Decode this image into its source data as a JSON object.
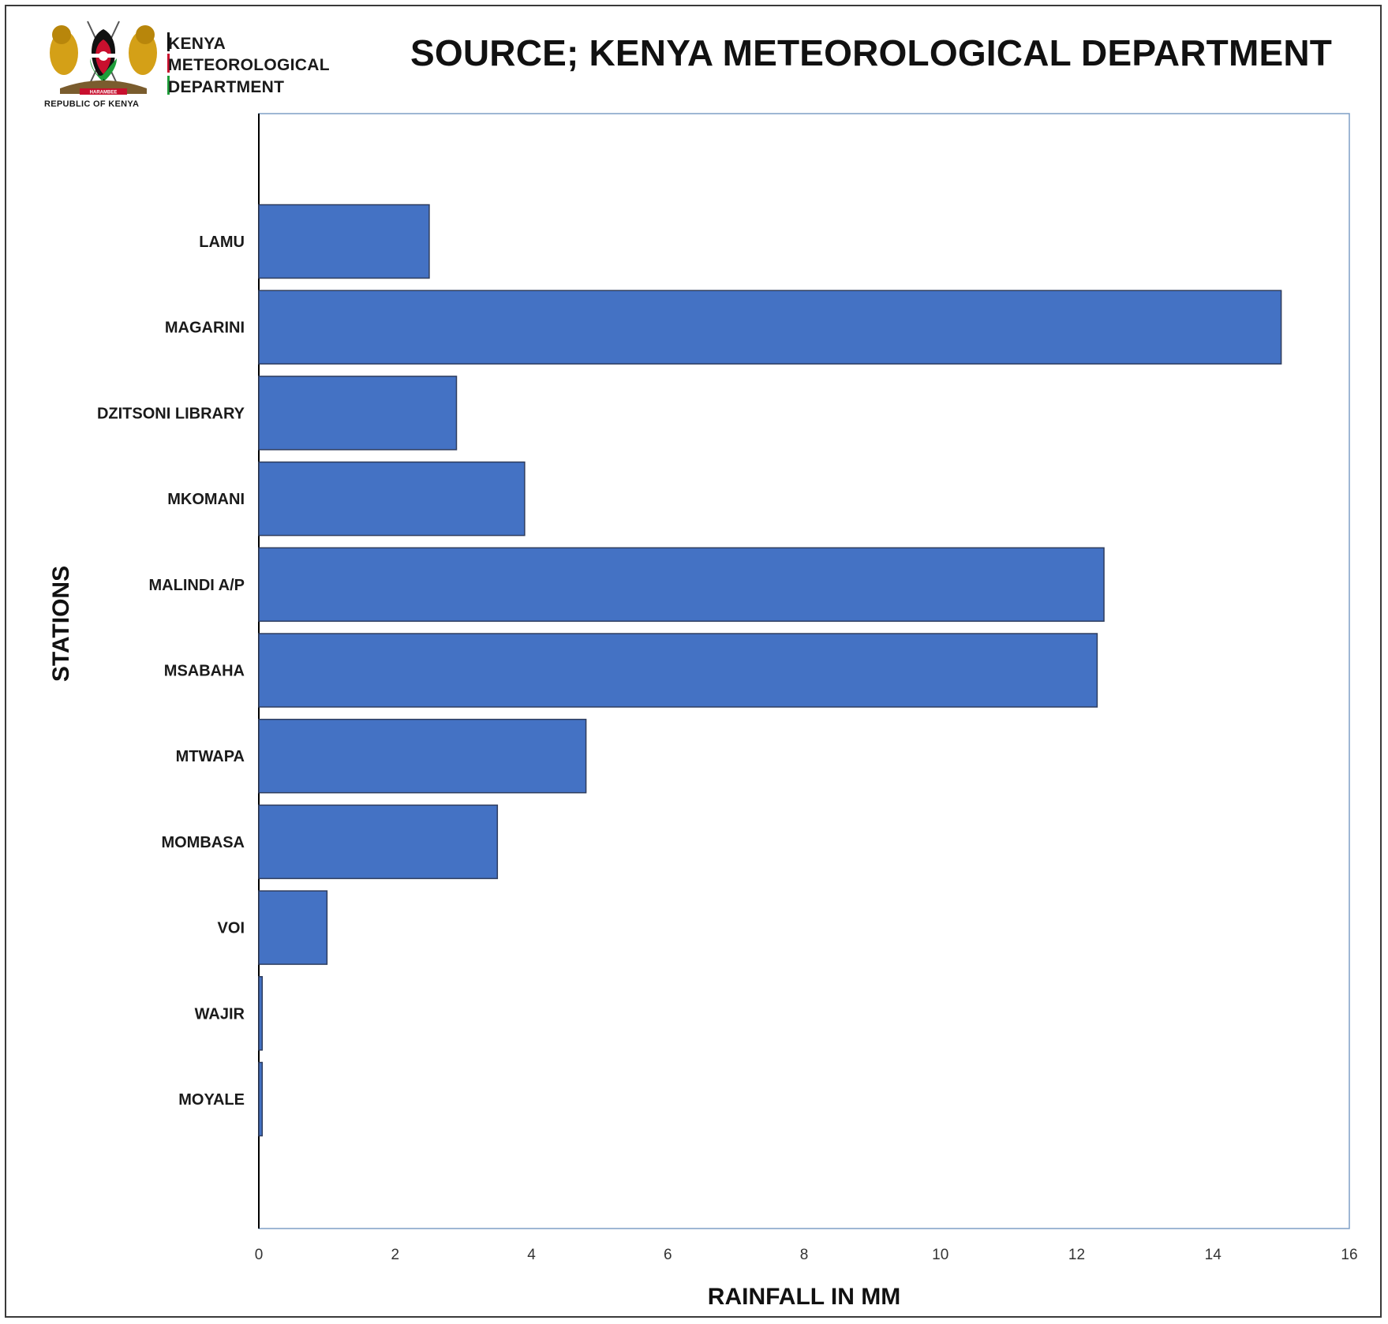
{
  "brand": {
    "line1": "KENYA",
    "line2": "METEOROLOGICAL",
    "line3": "DEPARTMENT",
    "emblem_caption": "REPUBLIC OF KENYA",
    "motto": "HARAMBEE",
    "bar_colors": [
      "#111111",
      "#c8102e",
      "#1e9e3a"
    ]
  },
  "chart_data": {
    "type": "bar",
    "orientation": "horizontal",
    "title": "SOURCE; KENYA METEOROLOGICAL DEPARTMENT",
    "xlabel": "RAINFALL IN MM",
    "ylabel": "STATIONS",
    "categories": [
      "LAMU",
      "MAGARINI",
      "DZITSONI LIBRARY",
      "MKOMANI",
      "MALINDI A/P",
      "MSABAHA",
      "MTWAPA",
      "MOMBASA",
      "VOI",
      "WAJIR",
      "MOYALE"
    ],
    "values": [
      2.5,
      15.0,
      2.9,
      3.9,
      12.4,
      12.3,
      4.8,
      3.5,
      1.0,
      0.05,
      0.05
    ],
    "xlim": [
      0,
      16
    ],
    "xticks": [
      0,
      2,
      4,
      6,
      8,
      10,
      12,
      14,
      16
    ],
    "bar_color": "#4472c4",
    "grid": false,
    "legend": "none"
  }
}
